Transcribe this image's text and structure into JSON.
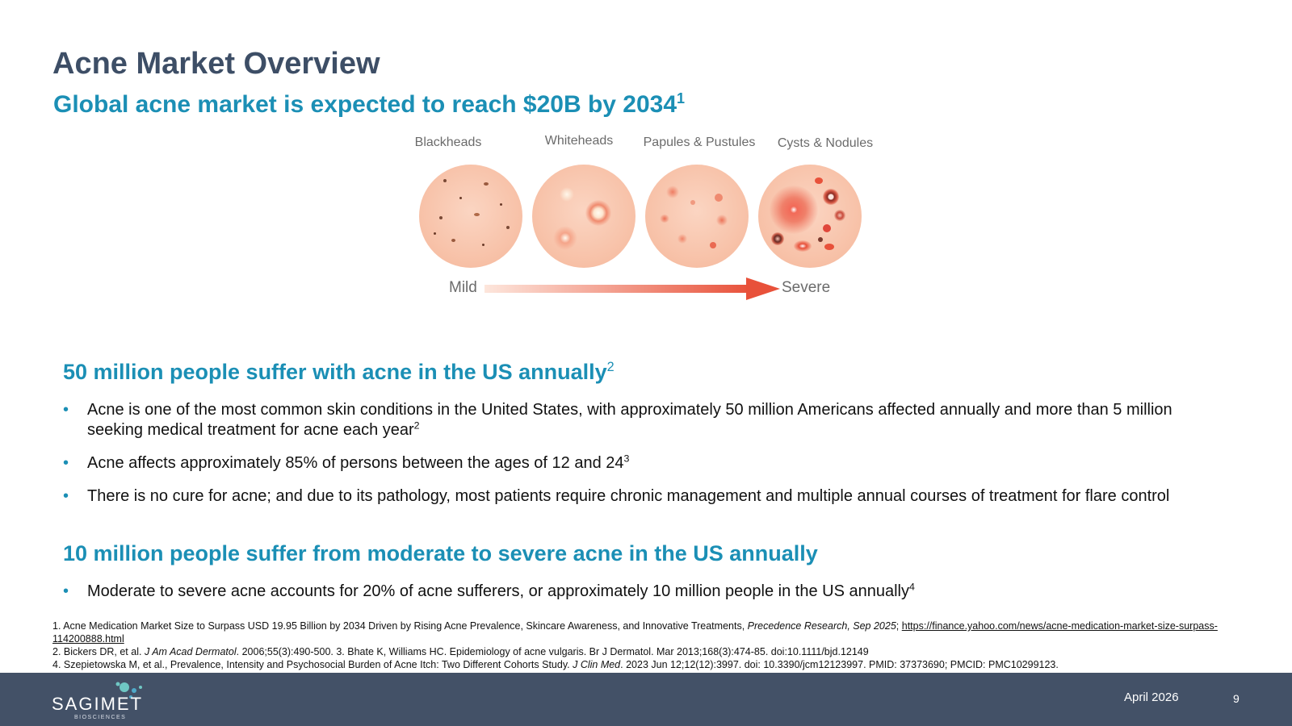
{
  "header": {
    "title": "Acne Market Overview",
    "subtitle": "Global acne market is expected to reach $20B by 2034",
    "subtitle_ref": "1"
  },
  "severity_graphic": {
    "stages": [
      "Blackheads",
      "Whiteheads",
      "Papules & Pustules",
      "Cysts & Nodules"
    ],
    "scale_start": "Mild",
    "scale_end": "Severe",
    "colors": {
      "skin": "#f7c0a6",
      "lesion": "#e8513a",
      "arrow": "#e8513a"
    }
  },
  "section1": {
    "heading": "50 million people suffer with acne in the US annually",
    "heading_ref": "2",
    "bullets": [
      {
        "text": "Acne is one of the most common skin conditions in the United States, with approximately 50 million Americans affected annually and more than 5 million seeking medical treatment for acne each year",
        "ref": "2"
      },
      {
        "text": "Acne affects approximately 85% of persons between the ages of 12 and 24",
        "ref": "3"
      },
      {
        "text": "There is no cure for acne; and due to its pathology, most patients require chronic management and multiple annual courses of treatment for flare control",
        "ref": ""
      }
    ]
  },
  "section2": {
    "heading": "10 million people suffer from moderate to severe acne in the US annually",
    "bullets": [
      {
        "text": "Moderate to severe acne accounts for 20% of acne sufferers, or approximately 10 million people in the US annually",
        "ref": "4"
      }
    ]
  },
  "footnotes": {
    "fn1_text": "1. Acne Medication Market Size to Surpass USD 19.95 Billion by 2034 Driven by Rising Acne Prevalence, Skincare Awareness, and Innovative Treatments, ",
    "fn1_source": "Precedence Research, Sep 2025",
    "fn1_sep": "; ",
    "fn1_link": "https://finance.yahoo.com/news/acne-medication-market-size-surpass-114200888.html",
    "fn2_pre": "2. Bickers DR, et al. ",
    "fn2_journal": "J Am Acad Dermatol",
    "fn2_post": ". 2006;55(3):490-500. 3. Bhate K, Williams HC. Epidemiology of acne vulgaris. Br J Dermatol. Mar 2013;168(3):474-85. doi:10.1111/bjd.12149",
    "fn4_pre": "4. Szepietowska M, et al., Prevalence, Intensity and Psychosocial Burden of Acne Itch: Two Different Cohorts Study. ",
    "fn4_journal": "J Clin Med",
    "fn4_post": ". 2023 Jun 12;12(12):3997. doi: 10.3390/jcm12123997. PMID: 37373690; PMCID: PMC10299123."
  },
  "footer": {
    "logo_text": "SAGIMET",
    "logo_sub": "BIOSCIENCES",
    "date": "April 2026",
    "page_number": "9",
    "background": "#435167"
  }
}
